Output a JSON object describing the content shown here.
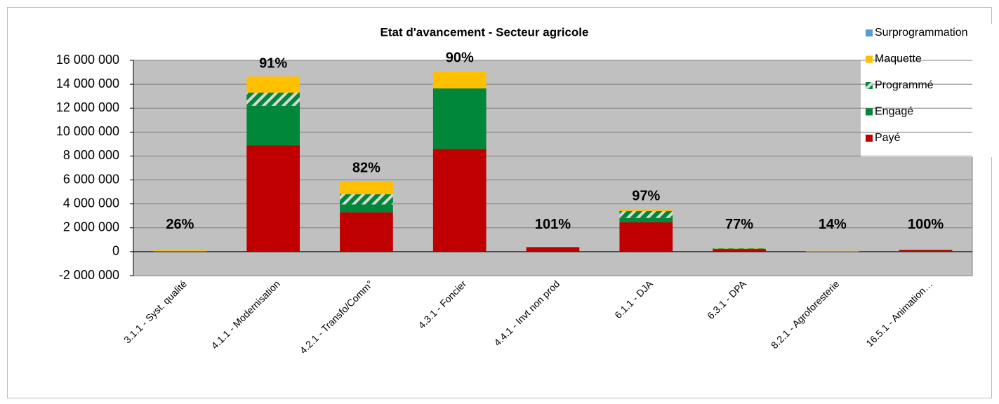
{
  "chart_data": {
    "type": "stacked_bar",
    "title": "Etat d'avancement - Secteur agricole",
    "categories": [
      "3.1.1 - Syst. qualité",
      "4.1.1 - Modernisation",
      "4.2.1 - Transfo/Comm°",
      "4.3.1 - Foncier",
      "4.4.1 - Invt non prod",
      "6.1.1 - DJA",
      "6.3.1 - DPA",
      "8.2.1 - Agroforesterie",
      "16.5.1 - Animation…"
    ],
    "series": [
      {
        "name": "Payé",
        "color": "#c00000",
        "values": [
          15000,
          8900000,
          3300000,
          8600000,
          380000,
          2470000,
          200000,
          5000,
          150000
        ]
      },
      {
        "name": "Engagé",
        "color": "#00873a",
        "values": [
          15000,
          3300000,
          650000,
          5050000,
          5000,
          350000,
          50000,
          5000,
          20000
        ]
      },
      {
        "name": "Programmé",
        "color": "#00873a",
        "pattern": "hatch",
        "values": [
          0,
          1100000,
          850000,
          0,
          0,
          580000,
          30000,
          0,
          0
        ]
      },
      {
        "name": "Maquette",
        "color": "#ffc000",
        "values": [
          85000,
          1350000,
          1100000,
          1450000,
          0,
          150000,
          80000,
          60000,
          30000
        ]
      },
      {
        "name": "Surprogrammation",
        "color": "#5b9bd5",
        "values": [
          0,
          0,
          0,
          0,
          0,
          0,
          0,
          0,
          0
        ]
      }
    ],
    "percent_labels": [
      "26%",
      "91%",
      "82%",
      "90%",
      "101%",
      "97%",
      "77%",
      "14%",
      "100%"
    ],
    "ylim": [
      -2000000,
      16000000
    ],
    "yticks": [
      {
        "value": -2000000,
        "label": "-2 000 000"
      },
      0,
      {
        "value": 2000000,
        "label": "2 000 000"
      },
      {
        "value": 4000000,
        "label": "4 000 000"
      },
      {
        "value": 6000000,
        "label": "6 000 000"
      },
      {
        "value": 8000000,
        "label": "8 000 000"
      },
      {
        "value": 10000000,
        "label": "10 000 000"
      },
      {
        "value": 12000000,
        "label": "12 000 000"
      },
      {
        "value": 14000000,
        "label": "14 000 000"
      },
      {
        "value": 16000000,
        "label": "16 000 000"
      }
    ],
    "grid": true,
    "legend": "top-right"
  }
}
